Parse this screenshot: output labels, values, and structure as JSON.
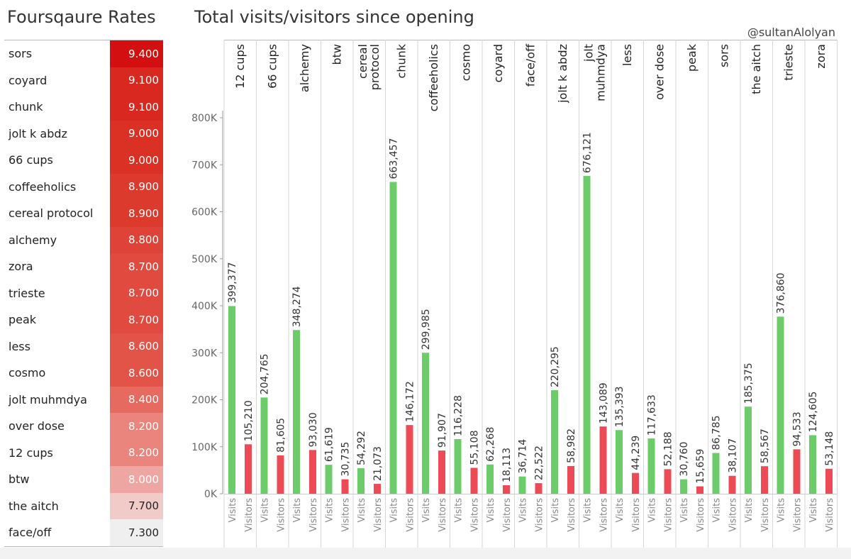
{
  "left_panel": {
    "title": "Foursqaure Rates",
    "rows": [
      {
        "name": "sors",
        "rate": "9.400",
        "color": "#d40f0f"
      },
      {
        "name": "coyard",
        "rate": "9.100",
        "color": "#d9281f"
      },
      {
        "name": "chunk",
        "rate": "9.100",
        "color": "#d9281f"
      },
      {
        "name": "jolt k abdz",
        "rate": "9.000",
        "color": "#db3024"
      },
      {
        "name": "66 cups",
        "rate": "9.000",
        "color": "#db3024"
      },
      {
        "name": "coffeeholics",
        "rate": "8.900",
        "color": "#dd3a2e"
      },
      {
        "name": "cereal protocol",
        "rate": "8.900",
        "color": "#dd3a2e"
      },
      {
        "name": "alchemy",
        "rate": "8.800",
        "color": "#df4236"
      },
      {
        "name": "zora",
        "rate": "8.700",
        "color": "#e14b3f"
      },
      {
        "name": "trieste",
        "rate": "8.700",
        "color": "#e14b3f"
      },
      {
        "name": "peak",
        "rate": "8.700",
        "color": "#e14b3f"
      },
      {
        "name": "less",
        "rate": "8.600",
        "color": "#e35448"
      },
      {
        "name": "cosmo",
        "rate": "8.600",
        "color": "#e35448"
      },
      {
        "name": "jolt muhmdya",
        "rate": "8.400",
        "color": "#e66a60"
      },
      {
        "name": "over dose",
        "rate": "8.200",
        "color": "#e9857d"
      },
      {
        "name": "12 cups",
        "rate": "8.200",
        "color": "#e9857d"
      },
      {
        "name": "btw",
        "rate": "8.000",
        "color": "#eda6a1"
      },
      {
        "name": "the aitch",
        "rate": "7.700",
        "color": "#f1cbc8"
      },
      {
        "name": "face/off",
        "rate": "7.300",
        "color": "#efefef"
      }
    ]
  },
  "chart_title": "Total visits/visitors since opening",
  "credit": "@sultanAlolyan",
  "chart_data": {
    "type": "bar",
    "categories": [
      "12 cups",
      "66 cups",
      "alchemy",
      "btw",
      "cereal protocol",
      "chunk",
      "coffeeholics",
      "cosmo",
      "coyard",
      "face/off",
      "jolt k abdz",
      "jolt muhmdya",
      "less",
      "over dose",
      "peak",
      "sors",
      "the aitch",
      "trieste",
      "zora"
    ],
    "category_lines": [
      [
        "12 cups"
      ],
      [
        "66 cups"
      ],
      [
        "alchemy"
      ],
      [
        "btw"
      ],
      [
        "cereal",
        "protocol"
      ],
      [
        "chunk"
      ],
      [
        "coffeeholics"
      ],
      [
        "cosmo"
      ],
      [
        "coyard"
      ],
      [
        "face/off"
      ],
      [
        "jolt k abdz"
      ],
      [
        "jolt",
        "muhmdya"
      ],
      [
        "less"
      ],
      [
        "over dose"
      ],
      [
        "peak"
      ],
      [
        "sors"
      ],
      [
        "the aitch"
      ],
      [
        "trieste"
      ],
      [
        "zora"
      ]
    ],
    "series": [
      {
        "name": "Visits",
        "color": "#6dcc6a",
        "values": [
          399377,
          204765,
          348274,
          61619,
          54292,
          663457,
          299985,
          116228,
          62268,
          36714,
          220295,
          676121,
          135393,
          117633,
          30760,
          86785,
          185375,
          376860,
          124605
        ],
        "labels": [
          "399,377",
          "204,765",
          "348,274",
          "61,619",
          "54,292",
          "663,457",
          "299,985",
          "116,228",
          "62,268",
          "36,714",
          "220,295",
          "676,121",
          "135,393",
          "117,633",
          "30,760",
          "86,785",
          "185,375",
          "376,860",
          "124,605"
        ]
      },
      {
        "name": "Visitors",
        "color": "#ec4a55",
        "values": [
          105210,
          81605,
          93030,
          30735,
          21073,
          146172,
          91907,
          55108,
          18113,
          22522,
          58982,
          143089,
          44239,
          52188,
          15659,
          38107,
          58567,
          94533,
          53148
        ],
        "labels": [
          "105,210",
          "81,605",
          "93,030",
          "30,735",
          "21,073",
          "146,172",
          "91,907",
          "55,108",
          "18,113",
          "22,522",
          "58,982",
          "143,089",
          "44,239",
          "52,188",
          "15,659",
          "38,107",
          "58,567",
          "94,533",
          "53,148"
        ]
      }
    ],
    "y_ticks": [
      0,
      100000,
      200000,
      300000,
      400000,
      500000,
      600000,
      700000,
      800000
    ],
    "y_tick_labels": [
      "0K",
      "100K",
      "200K",
      "300K",
      "400K",
      "500K",
      "600K",
      "700K",
      "800K"
    ],
    "ylim": [
      0,
      800000
    ],
    "grid": false,
    "legend": "none"
  }
}
